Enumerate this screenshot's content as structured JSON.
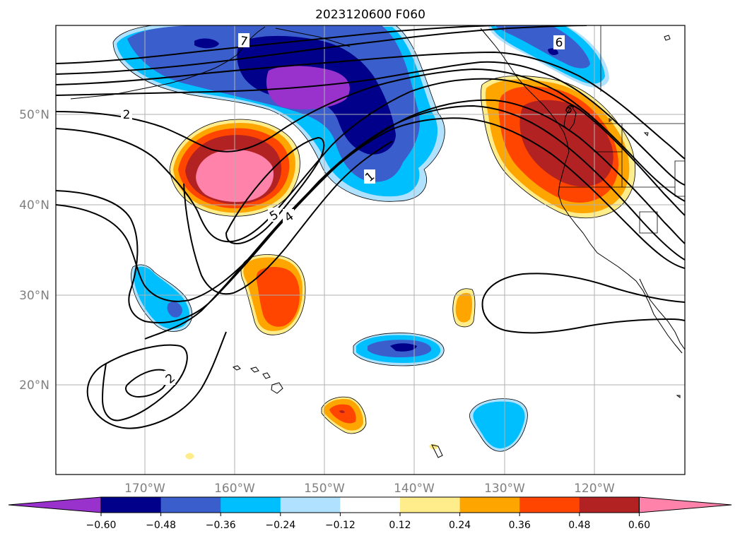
{
  "title": "2023120600 F060",
  "lat_labels": [
    "50°N",
    "40°N",
    "30°N",
    "20°N"
  ],
  "lon_labels": [
    "170°W",
    "160°W",
    "150°W",
    "140°W",
    "130°W",
    "120°W"
  ],
  "colorbar": {
    "colors": [
      "#9932CC",
      "#00008B",
      "#3A5FCD",
      "#00BFFF",
      "#B0E2FF",
      "#FFFFFF",
      "#FFEC8B",
      "#FFA500",
      "#FF4500",
      "#B22222",
      "#FF82AB"
    ],
    "tick_labels": [
      "−0.60",
      "−0.48",
      "−0.36",
      "−0.24",
      "−0.12",
      "0.12",
      "0.24",
      "0.36",
      "0.48",
      "0.60"
    ]
  },
  "contour_labels": [
    "7",
    "2",
    "5",
    "4",
    "1",
    "6",
    "2"
  ]
}
